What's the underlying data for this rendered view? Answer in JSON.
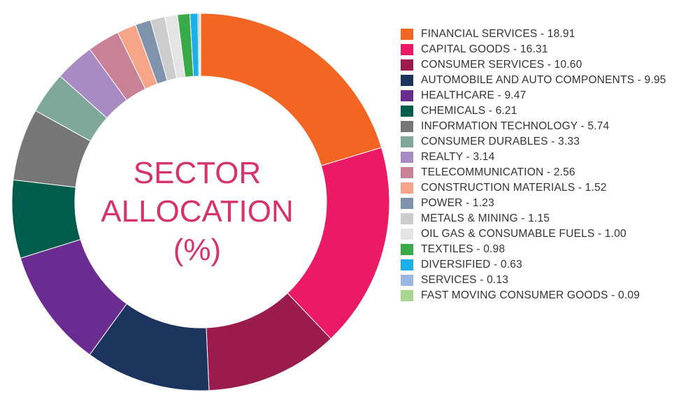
{
  "chart_data": {
    "type": "pie",
    "variant": "donut",
    "title_lines": [
      "SECTOR",
      "ALLOCATION",
      "(%)"
    ],
    "title_color": "#d6336c",
    "legend_position": "right",
    "legend_labels": [
      "FINANCIAL SERVICES - 18.91",
      "CAPITAL GOODS - 16.31",
      "CONSUMER SERVICES - 10.60",
      "AUTOMOBILE AND AUTO COMPONENTS - 9.95",
      "HEALTHCARE - 9.47",
      "CHEMICALS - 6.21",
      "INFORMATION TECHNOLOGY - 5.74",
      "CONSUMER DURABLES - 3.33",
      "REALTY - 3.14",
      "TELECOMMUNICATION - 2.56",
      "CONSTRUCTION MATERIALS - 1.52",
      "POWER - 1.23",
      "METALS & MINING - 1.15",
      "OIL GAS & CONSUMABLE FUELS - 1.00",
      "TEXTILES - 0.98",
      "DIVERSIFIED - 0.63",
      "SERVICES - 0.13",
      "FAST MOVING CONSUMER GOODS - 0.09"
    ],
    "categories": [
      "FINANCIAL SERVICES",
      "CAPITAL GOODS",
      "CONSUMER SERVICES",
      "AUTOMOBILE AND AUTO COMPONENTS",
      "HEALTHCARE",
      "CHEMICALS",
      "INFORMATION TECHNOLOGY",
      "CONSUMER DURABLES",
      "REALTY",
      "TELECOMMUNICATION",
      "CONSTRUCTION MATERIALS",
      "POWER",
      "METALS & MINING",
      "OIL GAS & CONSUMABLE FUELS",
      "TEXTILES",
      "DIVERSIFIED",
      "SERVICES",
      "FAST MOVING CONSUMER GOODS"
    ],
    "values": [
      18.91,
      16.31,
      10.6,
      9.95,
      9.47,
      6.21,
      5.74,
      3.33,
      3.14,
      2.56,
      1.52,
      1.23,
      1.15,
      1.0,
      0.98,
      0.63,
      0.13,
      0.09
    ],
    "colors": [
      "#f26522",
      "#ec1a66",
      "#9b1b4f",
      "#1c355e",
      "#6a2c91",
      "#005c4b",
      "#767676",
      "#7fa89b",
      "#a98bc4",
      "#c88196",
      "#f6a588",
      "#8093ac",
      "#cdcdcd",
      "#e4e4e4",
      "#3aaa49",
      "#1bb0e8",
      "#9ab6e2",
      "#a8d590"
    ]
  }
}
